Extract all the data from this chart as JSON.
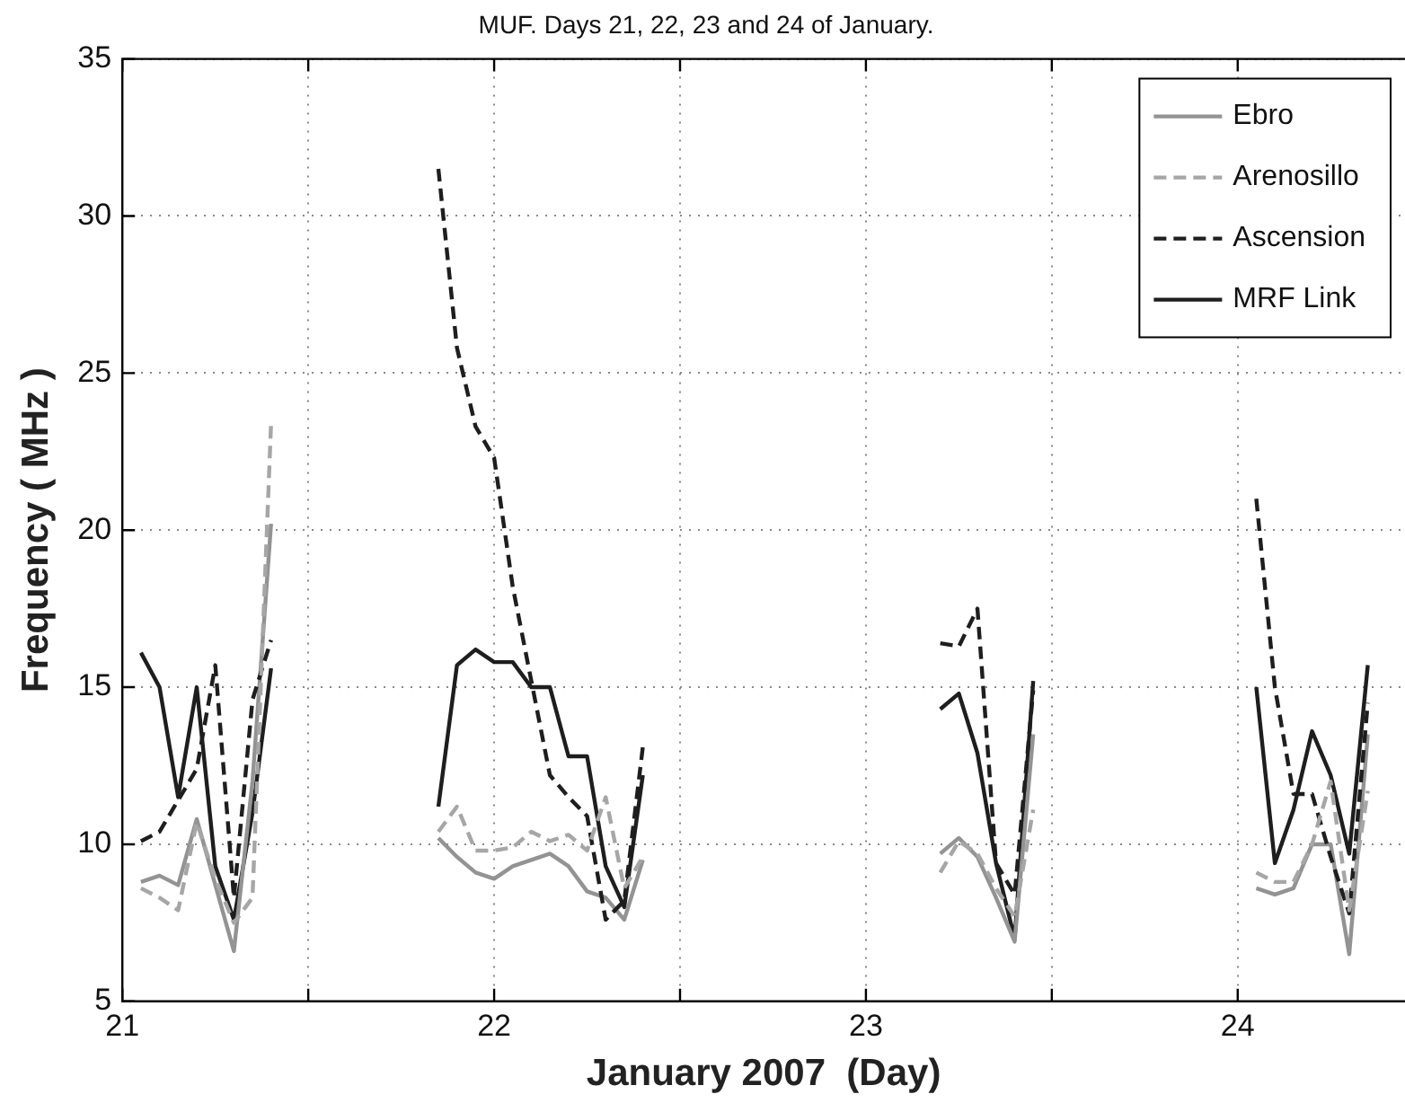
{
  "chart_data": {
    "type": "line",
    "title": "MUF. Days 21, 22, 23 and 24 of January.",
    "xlabel": "January 2007  (Day)",
    "ylabel": "Frequency ( MHz )",
    "x": [
      21.05,
      21.1,
      21.15,
      21.2,
      21.25,
      21.3,
      21.35,
      21.4,
      21.85,
      21.9,
      21.95,
      22.0,
      22.05,
      22.1,
      22.15,
      22.2,
      22.25,
      22.3,
      22.35,
      22.4,
      23.2,
      23.25,
      23.3,
      23.35,
      23.4,
      23.45,
      24.05,
      24.1,
      24.15,
      24.2,
      24.25,
      24.3,
      24.35
    ],
    "series": [
      {
        "name": "Ebro",
        "color": "#939393",
        "line_style": "solid",
        "values": [
          8.8,
          9.0,
          8.7,
          10.8,
          8.7,
          6.6,
          12.0,
          20.2,
          10.2,
          9.6,
          9.1,
          8.9,
          9.3,
          9.5,
          9.7,
          9.3,
          8.5,
          8.3,
          7.6,
          9.5,
          9.7,
          10.2,
          9.6,
          8.3,
          6.9,
          13.5,
          8.6,
          8.4,
          8.6,
          10.0,
          10.0,
          6.5,
          13.5
        ]
      },
      {
        "name": "Arenosillo",
        "color": "#a6a6a6",
        "line_style": "dashed",
        "values": [
          8.6,
          8.3,
          7.9,
          10.7,
          8.9,
          7.5,
          8.3,
          23.4,
          10.4,
          11.2,
          9.8,
          9.8,
          9.9,
          10.4,
          10.1,
          10.3,
          9.8,
          11.5,
          8.6,
          9.6,
          9.1,
          10.1,
          9.7,
          8.6,
          7.7,
          11.1,
          9.1,
          8.8,
          8.8,
          10.0,
          12.0,
          7.9,
          11.7
        ]
      },
      {
        "name": "Ascension",
        "color": "#1e1e1e",
        "line_style": "dashed",
        "values": [
          10.1,
          10.4,
          11.4,
          12.4,
          15.7,
          8.3,
          14.6,
          16.5,
          31.5,
          25.8,
          23.3,
          22.3,
          18.2,
          15.2,
          12.2,
          11.5,
          10.9,
          7.6,
          8.2,
          13.1,
          16.4,
          16.3,
          17.5,
          9.4,
          8.4,
          14.9,
          21.0,
          15.0,
          11.6,
          11.6,
          9.6,
          7.8,
          14.5
        ]
      },
      {
        "name": "MRF Link",
        "color": "#1e1e1e",
        "line_style": "solid",
        "values": [
          16.1,
          15.0,
          11.5,
          15.0,
          9.3,
          7.6,
          11.0,
          15.6,
          11.2,
          15.7,
          16.2,
          15.8,
          15.8,
          15.0,
          15.0,
          12.8,
          12.8,
          9.3,
          8.0,
          12.2,
          14.3,
          14.8,
          12.9,
          9.4,
          7.0,
          15.2,
          15.0,
          9.4,
          11.1,
          13.6,
          12.2,
          9.7,
          15.7
        ]
      }
    ],
    "xlim": [
      21,
      24.45
    ],
    "xticks": [
      21,
      {
        "value": 21.5,
        "label": null
      },
      22,
      {
        "value": 22.5,
        "label": null
      },
      23,
      {
        "value": 23.5,
        "label": null
      },
      24
    ],
    "ylim": [
      5,
      35
    ],
    "yticks": [
      5,
      10,
      15,
      20,
      25,
      30,
      35
    ],
    "grid": true,
    "legend": "top right"
  }
}
